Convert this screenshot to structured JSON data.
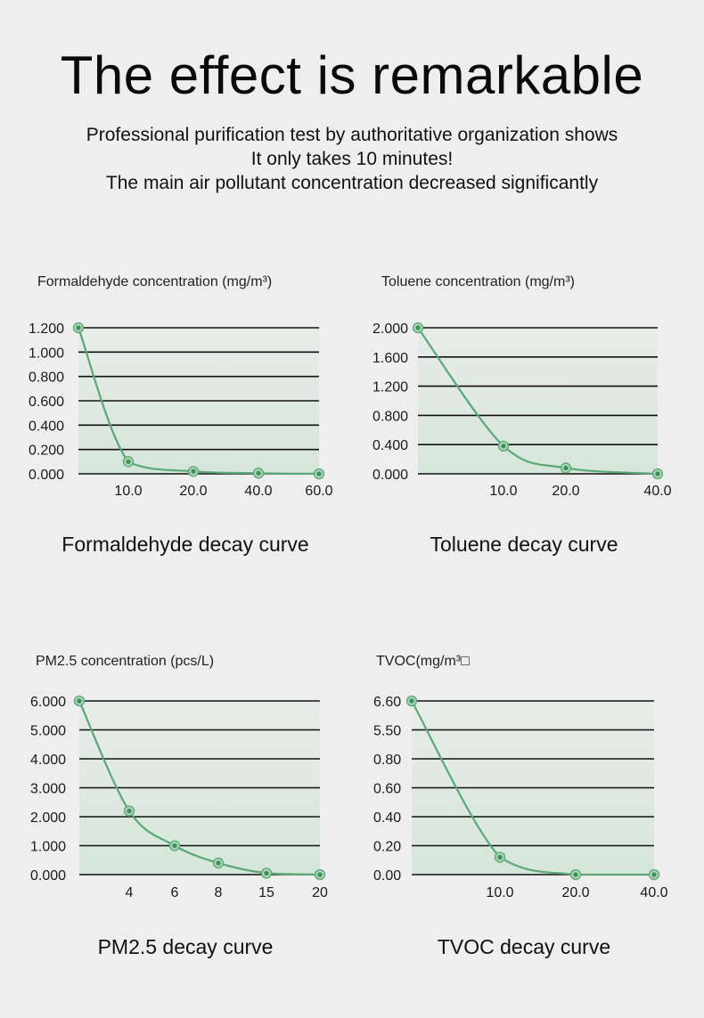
{
  "header": {
    "title": "The effect is remarkable",
    "lines": [
      "Professional purification test by authoritative organization shows",
      "It only takes 10 minutes!",
      "The main air pollutant concentration decreased significantly"
    ]
  },
  "colors": {
    "curve": "#5aa876",
    "marker_fill": "#a9d4b4",
    "marker_dot": "#3f8e5b",
    "grid": "#111111"
  },
  "chart_data": [
    {
      "type": "line",
      "title": "Formaldehyde concentration (mg/m³)",
      "caption": "Formaldehyde decay curve",
      "x_tick_labels": [
        "10.0",
        "20.0",
        "40.0",
        "60.0"
      ],
      "y_tick_labels": [
        "1.200",
        "1.000",
        "0.800",
        "0.600",
        "0.400",
        "0.200",
        "0.000"
      ],
      "ylim": [
        0,
        1.2
      ],
      "grid": true,
      "points": [
        {
          "x": 0,
          "y": 1.2
        },
        {
          "x": 10.0,
          "y": 0.1
        },
        {
          "x": 20.0,
          "y": 0.02
        },
        {
          "x": 40.0,
          "y": 0.005
        },
        {
          "x": 60.0,
          "y": 0.0
        }
      ]
    },
    {
      "type": "line",
      "title": "Toluene concentration (mg/m³)",
      "caption": "Toluene decay curve",
      "x_tick_labels": [
        "10.0",
        "20.0",
        "40.0"
      ],
      "y_tick_labels": [
        "2.000",
        "1.600",
        "1.200",
        "0.800",
        "0.400",
        "0.000"
      ],
      "ylim": [
        0,
        2.0
      ],
      "grid": true,
      "points": [
        {
          "x": 0,
          "y": 2.0
        },
        {
          "x": 10.0,
          "y": 0.38
        },
        {
          "x": 20.0,
          "y": 0.08
        },
        {
          "x": 40.0,
          "y": 0.0
        }
      ]
    },
    {
      "type": "line",
      "title": "PM2.5 concentration (pcs/L)",
      "caption": "PM2.5 decay curve",
      "x_tick_labels": [
        "4",
        "6",
        "8",
        "15",
        "20"
      ],
      "y_tick_labels": [
        "6.000",
        "5.000",
        "4.000",
        "3.000",
        "2.000",
        "1.000",
        "0.000"
      ],
      "ylim": [
        0,
        6.0
      ],
      "grid": true,
      "points": [
        {
          "x": 0,
          "y": 6.0
        },
        {
          "x": 4,
          "y": 2.2
        },
        {
          "x": 6,
          "y": 1.0
        },
        {
          "x": 8,
          "y": 0.4
        },
        {
          "x": 15,
          "y": 0.05
        },
        {
          "x": 20,
          "y": 0.0
        }
      ]
    },
    {
      "type": "line",
      "title": "TVOC(mg/m³□",
      "caption": "TVOC decay curve",
      "x_tick_labels": [
        "10.0",
        "20.0",
        "40.0"
      ],
      "y_tick_labels": [
        "6.60",
        "5.50",
        "0.80",
        "0.60",
        "0.40",
        "0.20",
        "0.00"
      ],
      "grid": true,
      "points": [
        {
          "x": 0,
          "y": 6.6
        },
        {
          "x": 10.0,
          "y": 0.12
        },
        {
          "x": 20.0,
          "y": 0.0
        },
        {
          "x": 40.0,
          "y": 0.0
        }
      ]
    }
  ]
}
